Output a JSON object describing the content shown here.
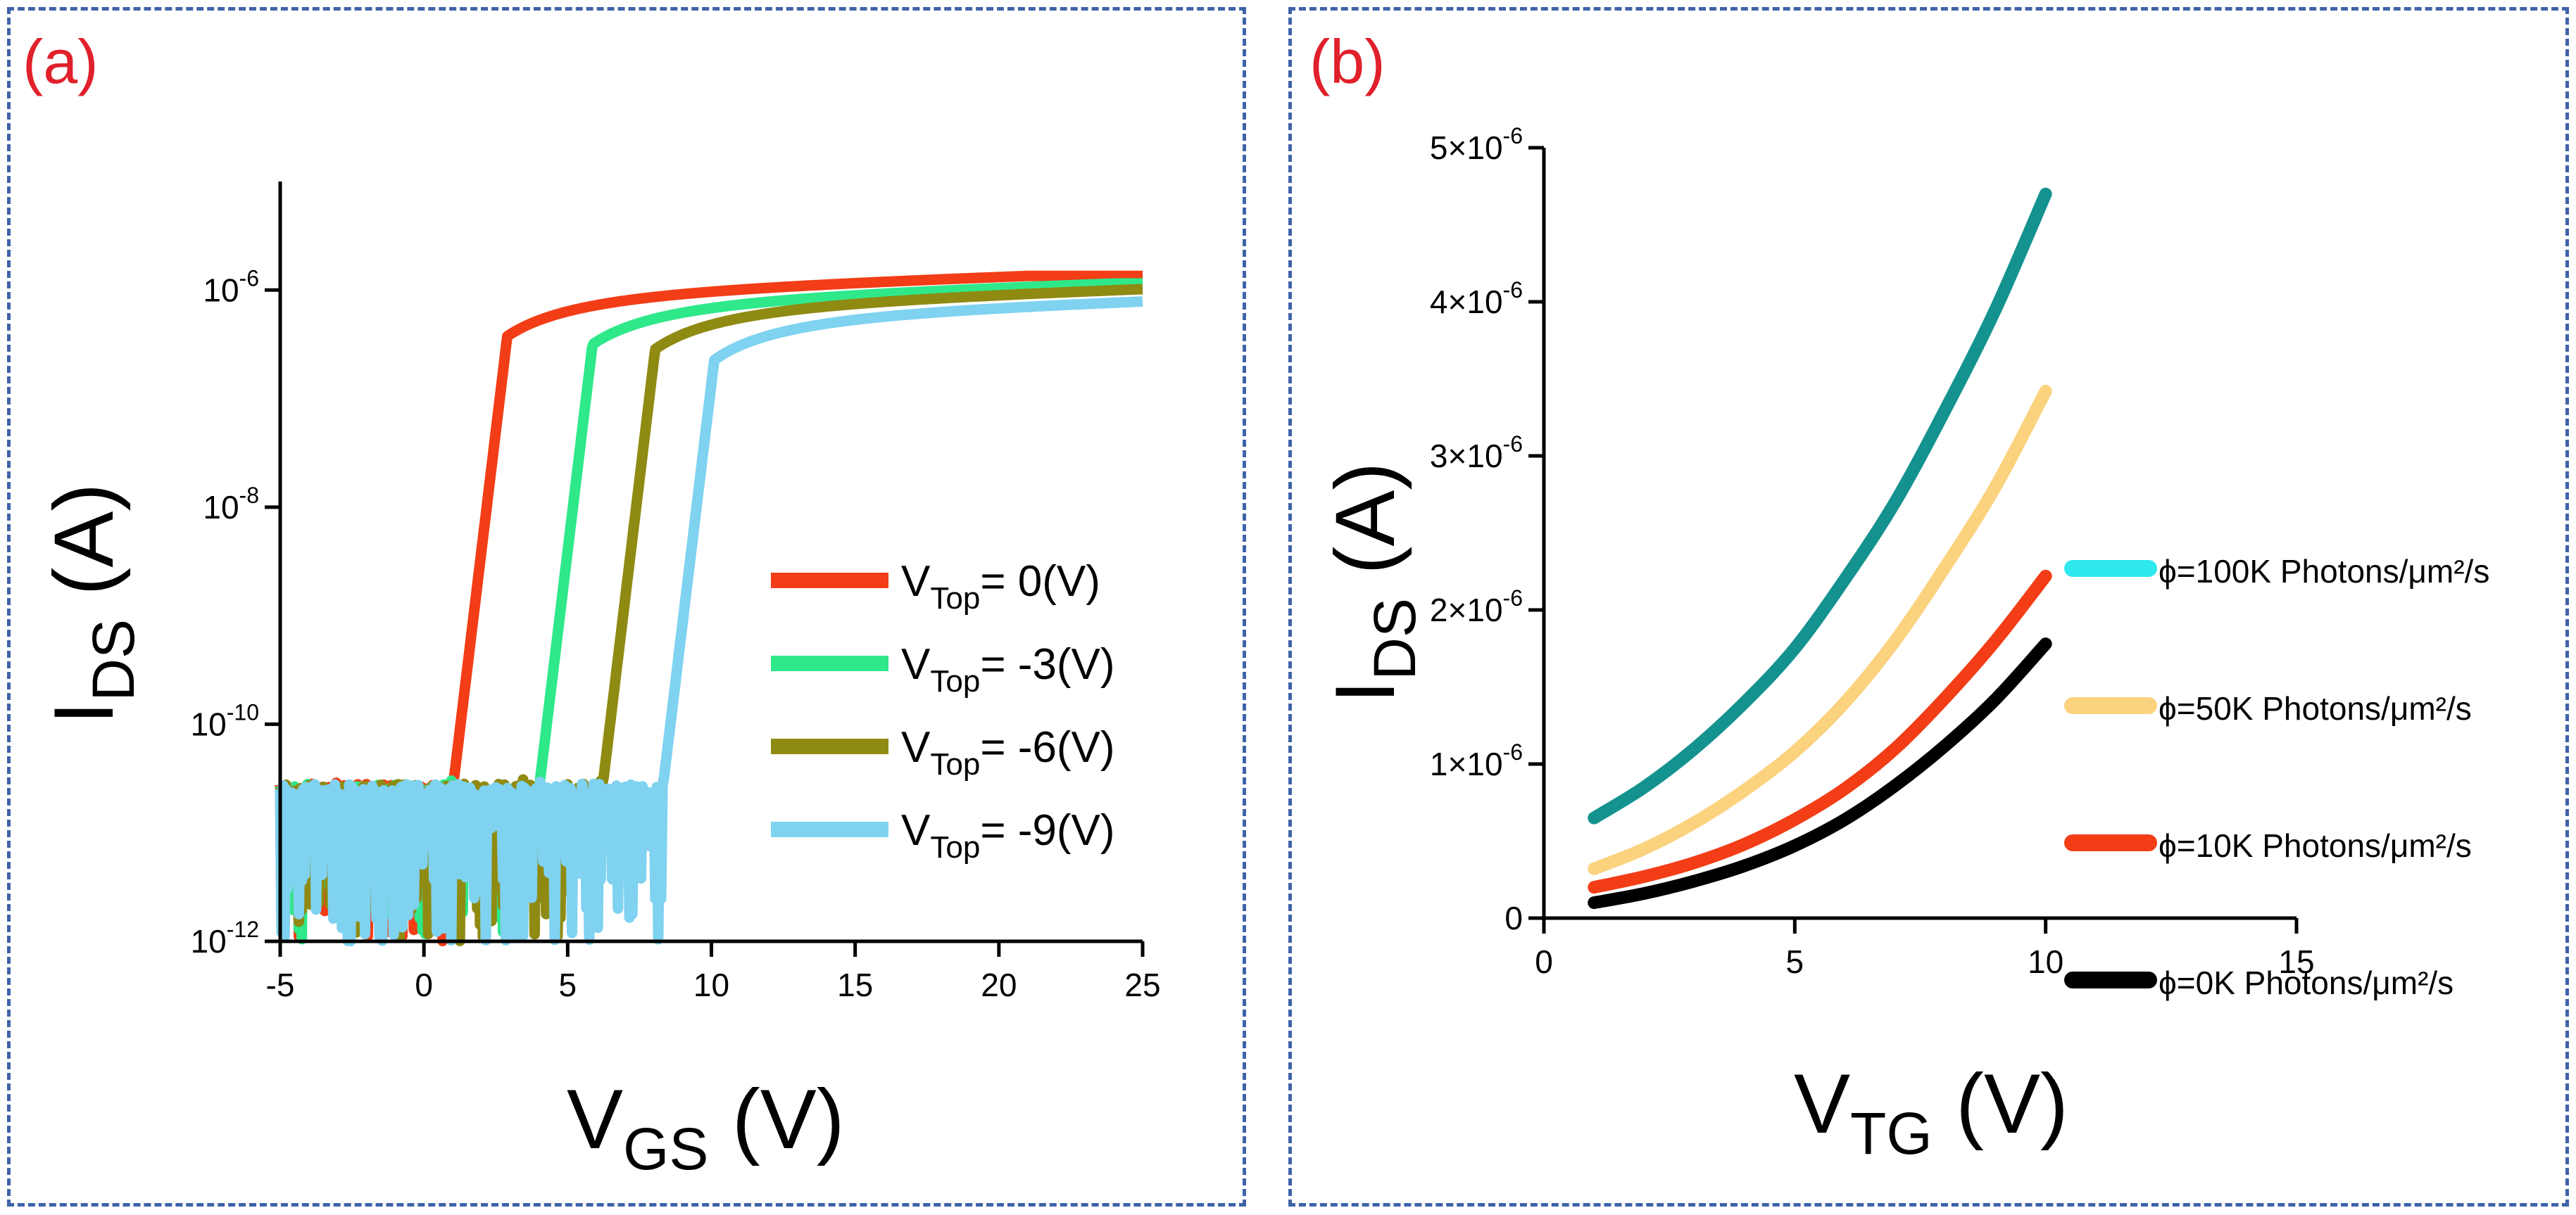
{
  "chart_data": [
    {
      "type": "line",
      "panel_label": "(a)",
      "xlabel": {
        "main": "V",
        "sub": "GS",
        "unit": " (V)"
      },
      "ylabel": {
        "main": "I",
        "sub": "DS",
        "unit": " (A)"
      },
      "yscale": "log",
      "xlim": [
        -5,
        25
      ],
      "ylim": [
        1e-12,
        1e-05
      ],
      "xticks": [
        "-5",
        "0",
        "5",
        "10",
        "15",
        "20",
        "25"
      ],
      "yticks": [
        {
          "base": "10",
          "exp": "-12",
          "value": 1e-12
        },
        {
          "base": "10",
          "exp": "-10",
          "value": 1e-10
        },
        {
          "base": "10",
          "exp": "-8",
          "value": 1e-08
        },
        {
          "base": "10",
          "exp": "-6",
          "value": 1e-06
        }
      ],
      "legend_position": "right",
      "series": [
        {
          "name": {
            "main": "V",
            "sub": "Top",
            "rest": "= 0(V)"
          },
          "color": "#f23d16",
          "vth": 1.0,
          "ion": 1.35e-06
        },
        {
          "name": {
            "main": "V",
            "sub": "Top",
            "rest": "= -3(V)"
          },
          "color": "#2ee88a",
          "vth": 4.0,
          "ion": 1.15e-06
        },
        {
          "name": {
            "main": "V",
            "sub": "Top",
            "rest": "= -6(V)"
          },
          "color": "#8f8a12",
          "vth": 6.2,
          "ion": 1.05e-06
        },
        {
          "name": {
            "main": "V",
            "sub": "Top",
            "rest": "= -9(V)"
          },
          "color": "#7fd2f0",
          "vth": 8.3,
          "ion": 8.5e-07
        }
      ]
    },
    {
      "type": "line",
      "panel_label": "(b)",
      "xlabel": {
        "main": "V",
        "sub": "TG",
        "unit": " (V)"
      },
      "ylabel": {
        "main": "I",
        "sub": "DS",
        "unit": " (A)"
      },
      "xlim": [
        0,
        15
      ],
      "ylim": [
        0,
        5e-06
      ],
      "xticks": [
        "0",
        "5",
        "10",
        "15"
      ],
      "yticks": [
        {
          "base": "0",
          "exp": "",
          "value": 0
        },
        {
          "base": "1×10",
          "exp": "-6",
          "value": 1e-06
        },
        {
          "base": "2×10",
          "exp": "-6",
          "value": 2e-06
        },
        {
          "base": "3×10",
          "exp": "-6",
          "value": 3e-06
        },
        {
          "base": "4×10",
          "exp": "-6",
          "value": 4e-06
        },
        {
          "base": "5×10",
          "exp": "-6",
          "value": 5e-06
        }
      ],
      "legend_position": "right",
      "series": [
        {
          "name": "ϕ=100K Photons/μm²/s",
          "legend_color": "#2ee8ee",
          "color": "#14928f",
          "x": [
            1,
            2,
            3,
            4,
            5,
            6,
            7,
            8,
            9,
            10
          ],
          "y": [
            6.5e-07,
            8.5e-07,
            1.1e-06,
            1.4e-06,
            1.75e-06,
            2.2e-06,
            2.7e-06,
            3.3e-06,
            3.95e-06,
            4.7e-06
          ]
        },
        {
          "name": "ϕ=50K Photons/μm²/s",
          "legend_color": "#fbd27e",
          "color": "#fbd27e",
          "x": [
            1,
            2,
            3,
            4,
            5,
            6,
            7,
            8,
            9,
            10
          ],
          "y": [
            3.2e-07,
            4.5e-07,
            6.2e-07,
            8.3e-07,
            1.08e-06,
            1.4e-06,
            1.8e-06,
            2.28e-06,
            2.8e-06,
            3.42e-06
          ]
        },
        {
          "name": "ϕ=10K Photons/μm²/s",
          "legend_color": "#f23d16",
          "color": "#f23d16",
          "x": [
            1,
            2,
            3,
            4,
            5,
            6,
            7,
            8,
            9,
            10
          ],
          "y": [
            2e-07,
            2.7e-07,
            3.6e-07,
            4.8e-07,
            6.4e-07,
            8.4e-07,
            1.1e-06,
            1.43e-06,
            1.8e-06,
            2.22e-06
          ]
        },
        {
          "name": "ϕ=0K Photons/μm²/s",
          "legend_color": "#000000",
          "color": "#000000",
          "x": [
            1,
            2,
            3,
            4,
            5,
            6,
            7,
            8,
            9,
            10
          ],
          "y": [
            1e-07,
            1.6e-07,
            2.4e-07,
            3.4e-07,
            4.7e-07,
            6.4e-07,
            8.6e-07,
            1.12e-06,
            1.42e-06,
            1.78e-06
          ]
        }
      ]
    }
  ]
}
